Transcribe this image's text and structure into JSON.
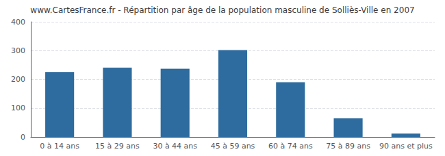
{
  "chart_data": {
    "type": "bar",
    "title": "www.CartesFrance.fr - Répartition par âge de la population masculine de Solliès-Ville en 2007",
    "categories": [
      "0 à 14 ans",
      "15 à 29 ans",
      "30 à 44 ans",
      "45 à 59 ans",
      "60 à 74 ans",
      "75 à 89 ans",
      "90 ans et plus"
    ],
    "values": [
      225,
      240,
      237,
      302,
      190,
      65,
      12
    ],
    "color": "#2e6b9e",
    "ylim": [
      0,
      400
    ],
    "yticks": [
      0,
      100,
      200,
      300,
      400
    ],
    "grid": true
  }
}
